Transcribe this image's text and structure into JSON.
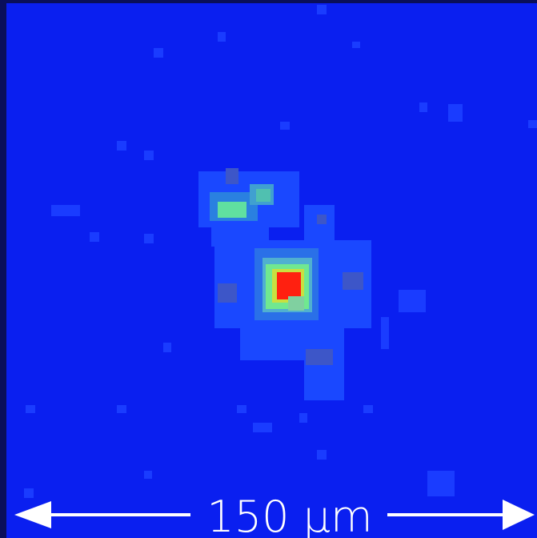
{
  "scale_bar": {
    "label": "150 µm"
  }
}
